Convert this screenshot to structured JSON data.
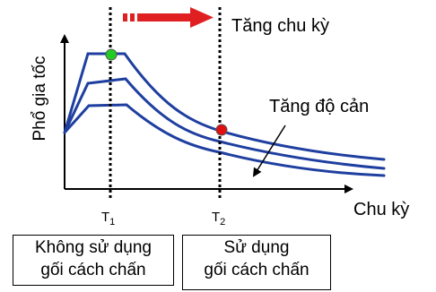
{
  "diagram": {
    "y_axis_label": "Phổ gia tốc",
    "x_axis_label": "Chu kỳ",
    "period_increase_label": "Tăng chu kỳ",
    "damping_increase_label": "Tăng độ cản",
    "t1_main": "T",
    "t1_sub": "1",
    "t2_main": "T",
    "t2_sub": "2",
    "curve_color": "#1f3fa0",
    "arrow_color": "#e02020",
    "marker_t1_color": "#22cc22",
    "marker_t2_color": "#e01010"
  },
  "captions": {
    "left_line1": "Không sử dụng",
    "left_line2": "gối cách chấn",
    "right_line1": "Sử dụng",
    "right_line2": "gối cách chấn"
  }
}
